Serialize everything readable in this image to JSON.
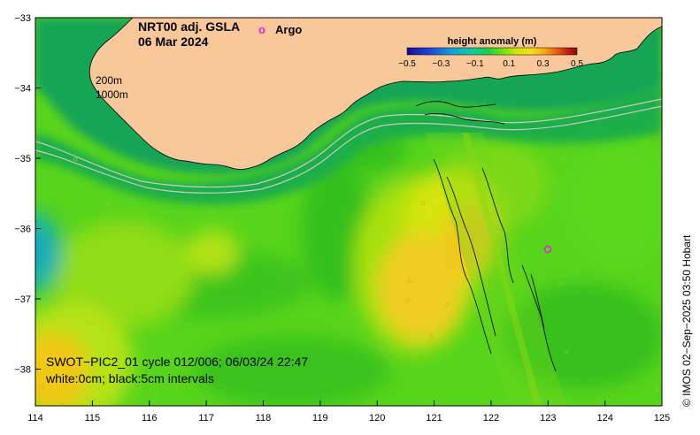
{
  "title": {
    "line1": "NRT00 adj. GSLA",
    "line2": "06 Mar 2024"
  },
  "legend": {
    "argo_symbol": "o",
    "argo_label": "Argo",
    "argo_color": "#e020e0"
  },
  "colorbar": {
    "title": "height anomaly (m)",
    "ticks": [
      "−0.5",
      "−0.3",
      "−0.1",
      "0.1",
      "0.3",
      "0.5"
    ],
    "colors": [
      "#1a0a8c",
      "#1f3fd6",
      "#12a0d8",
      "#15c8a0",
      "#20d040",
      "#6fe010",
      "#c8e808",
      "#f4e020",
      "#f7b010",
      "#e86010",
      "#c01c10",
      "#8a0a0a"
    ]
  },
  "isobaths": {
    "label_200": "200m",
    "label_1000": "1000m"
  },
  "axes": {
    "x_ticks": [
      "114",
      "115",
      "116",
      "117",
      "118",
      "119",
      "120",
      "121",
      "122",
      "123",
      "124",
      "125"
    ],
    "y_ticks": [
      "−33",
      "−34",
      "−35",
      "−36",
      "−37",
      "−38"
    ]
  },
  "annotation": {
    "line1": "SWOT−PIC2_01 cycle 012/006; 06/03/24 22:47",
    "line2": "white:0cm; black:5cm intervals"
  },
  "credit": "© IMOS 02−Sep−2025 03:50 Hobart",
  "colors": {
    "land": "#f9c89a",
    "ocean_base": "#58d41c",
    "shelf": "#17a84a",
    "warm": "#f0cc20"
  }
}
